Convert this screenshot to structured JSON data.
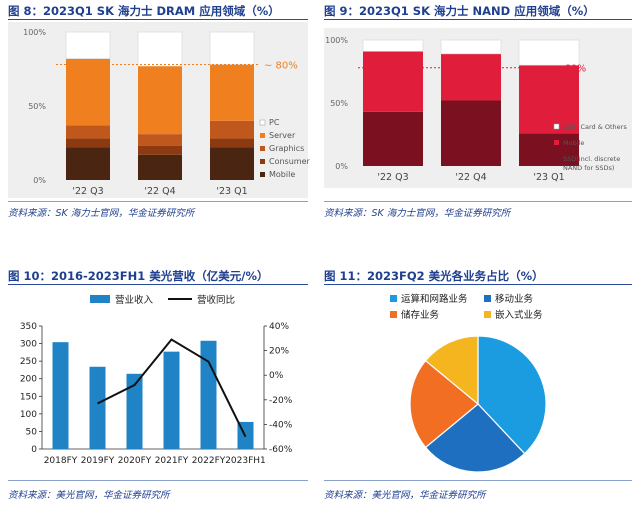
{
  "figure8": {
    "title": "图 8：2023Q1 SK 海力士 DRAM 应用领域（%）",
    "source": "资料来源：SK 海力士官网，华金证券研究所",
    "chart_data": {
      "type": "bar",
      "stacked": true,
      "categories": [
        "'22 Q3",
        "'22 Q4",
        "'23 Q1"
      ],
      "y_ticks": [
        "0%",
        "50%",
        "100%"
      ],
      "ylim": [
        0,
        100
      ],
      "series": [
        {
          "name": "Mobile",
          "color": "#4a2511",
          "values": [
            22,
            17,
            22
          ]
        },
        {
          "name": "Consumer",
          "color": "#8b3a11",
          "values": [
            6,
            6,
            6
          ]
        },
        {
          "name": "Graphics",
          "color": "#c0571d",
          "values": [
            9,
            8,
            12
          ]
        },
        {
          "name": "Server",
          "color": "#f0801f",
          "values": [
            45,
            46,
            38
          ]
        },
        {
          "name": "PC",
          "color": "#ffffff",
          "values": [
            18,
            23,
            22
          ]
        }
      ],
      "annotation": "~ 80%",
      "reference_line": 78
    }
  },
  "figure9": {
    "title": "图 9：2023Q1 SK 海力士 NAND 应用领域（%）",
    "source": "资料来源：SK 海力士官网，华金证券研究所",
    "chart_data": {
      "type": "bar",
      "stacked": true,
      "categories": [
        "'22 Q3",
        "'22 Q4",
        "'23 Q1"
      ],
      "y_ticks": [
        "0%",
        "50%",
        "100%"
      ],
      "ylim": [
        0,
        100
      ],
      "series": [
        {
          "name": "SSD(incl. discrete NAND for SSDs)",
          "legend_lines": [
            "SSD(incl. discrete",
            "NAND for SSDs)"
          ],
          "color": "#7a1020",
          "values": [
            43,
            52,
            26
          ]
        },
        {
          "name": "Mobile",
          "color": "#e01e3c",
          "values": [
            48,
            37,
            54
          ]
        },
        {
          "name": "USB, Card & Others",
          "color": "#ffffff",
          "values": [
            9,
            11,
            20
          ]
        }
      ],
      "annotation": "~ 80%",
      "reference_line": 78
    }
  },
  "figure10": {
    "title": "图 10：2016-2023FH1 美光营收（亿美元/%）",
    "source": "资料来源：美光官网，华金证券研究所",
    "chart_data": {
      "type": "bar",
      "categories": [
        "2018FY",
        "2019FY",
        "2020FY",
        "2021FY",
        "2022FY",
        "2023FH1"
      ],
      "series": [
        {
          "name": "营业收入",
          "type": "bar",
          "axis": "left",
          "color": "#1f83c6",
          "values": [
            304,
            234,
            214,
            277,
            308,
            77
          ]
        },
        {
          "name": "营收同比",
          "type": "line",
          "axis": "right",
          "color": "#111111",
          "values": [
            null,
            -23,
            -8,
            29,
            11,
            -50
          ]
        }
      ],
      "y_left": {
        "ylim": [
          0,
          350
        ],
        "ticks": [
          "0",
          "50",
          "100",
          "150",
          "200",
          "250",
          "300",
          "350"
        ]
      },
      "y_right": {
        "ylim": [
          -60,
          40
        ],
        "ticks": [
          "-60%",
          "-40%",
          "-20%",
          "0%",
          "20%",
          "40%"
        ]
      }
    }
  },
  "figure11": {
    "title": "图 11：2023FQ2 美光各业务占比（%）",
    "source": "资料来源：美光官网，华金证券研究所",
    "chart_data": {
      "type": "pie",
      "slices": [
        {
          "name": "运算和网路业务",
          "color": "#1b9ce0",
          "value": 38
        },
        {
          "name": "移动业务",
          "color": "#1f6fc0",
          "value": 26
        },
        {
          "name": "储存业务",
          "color": "#f26e22",
          "value": 22
        },
        {
          "name": "嵌入式业务",
          "color": "#f5b51e",
          "value": 14
        }
      ]
    }
  }
}
